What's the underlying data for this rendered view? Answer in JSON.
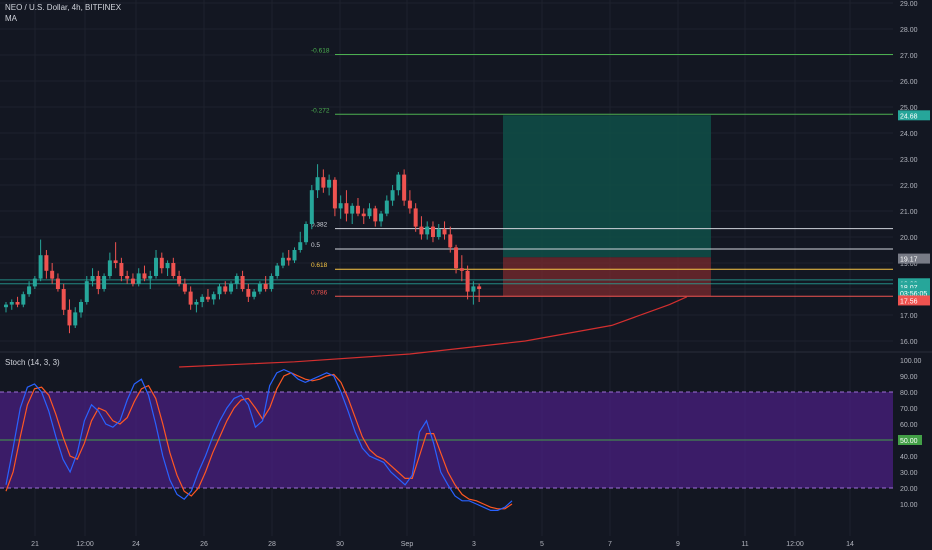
{
  "header": {
    "symbol": "NEO / U.S. Dollar, 4h, BITFINEX",
    "indicator": "MA",
    "stoch_label": "Stoch (14, 3, 3)"
  },
  "colors": {
    "background": "#131722",
    "up": "#26a69a",
    "down": "#ef5350",
    "ma": "#d32f2f",
    "stoch_k": "#2962ff",
    "stoch_d": "#ff5722",
    "stoch_band": "#4a1f80",
    "target_zone": "#0f4f48",
    "stop_zone": "#7a2a2e",
    "fib_green": "#4caf50",
    "fib_white": "#d1d4dc",
    "fib_yellow": "#f9c644",
    "fib_red": "#ef5350"
  },
  "chart_data": {
    "type": "candlestick",
    "price_axis": {
      "min": 16.0,
      "max": 29.0,
      "step": 1,
      "ticks": [
        "29.00",
        "28.00",
        "27.00",
        "26.00",
        "25.00",
        "24.00",
        "23.00",
        "22.00",
        "21.00",
        "20.00",
        "19.00",
        "18.00",
        "17.00",
        "16.00"
      ]
    },
    "time_axis": {
      "labels": [
        "21",
        "12:00",
        "24",
        "26",
        "28",
        "30",
        "Sep",
        "3",
        "5",
        "7",
        "9",
        "11",
        "12:00",
        "14"
      ]
    },
    "price_tags": [
      {
        "value": 24.68,
        "label": "24.68",
        "color": "#26a69a"
      },
      {
        "value": 19.17,
        "label": "19.17",
        "color": "#787b86"
      },
      {
        "value": 18.22,
        "label": "18.22",
        "color": "#26a69a"
      },
      {
        "value": 18.07,
        "label": "18.07",
        "color": "#26a69a"
      },
      {
        "value": 17.84,
        "label": "03:56:05",
        "color": "#26a69a"
      },
      {
        "value": 17.56,
        "label": "17.56",
        "color": "#ef5350"
      }
    ],
    "fib_levels": [
      {
        "label": "-0.618",
        "value": 27.02,
        "color": "#4caf50"
      },
      {
        "label": "-0.272",
        "value": 24.72,
        "color": "#4caf50"
      },
      {
        "label": "0.382",
        "value": 20.32,
        "color": "#d1d4dc"
      },
      {
        "label": "0.5",
        "value": 19.54,
        "color": "#d1d4dc"
      },
      {
        "label": "0.618",
        "value": 18.76,
        "color": "#f9c644"
      },
      {
        "label": "0.786",
        "value": 17.72,
        "color": "#ef5350"
      }
    ],
    "support_lines": [
      18.35,
      18.2
    ],
    "target_zone": {
      "from": 19.22,
      "to": 24.68
    },
    "stop_zone": {
      "from": 17.72,
      "to": 19.22
    },
    "ohlc": [
      [
        17.3,
        17.5,
        17.1,
        17.4
      ],
      [
        17.4,
        17.6,
        17.2,
        17.5
      ],
      [
        17.5,
        17.7,
        17.3,
        17.4
      ],
      [
        17.4,
        17.9,
        17.3,
        17.8
      ],
      [
        17.8,
        18.3,
        17.7,
        18.1
      ],
      [
        18.1,
        18.5,
        18.0,
        18.4
      ],
      [
        18.4,
        19.9,
        18.3,
        19.3
      ],
      [
        19.3,
        19.5,
        18.4,
        18.7
      ],
      [
        18.7,
        19.0,
        18.2,
        18.4
      ],
      [
        18.4,
        18.6,
        17.9,
        18.0
      ],
      [
        18.0,
        18.2,
        17.0,
        17.2
      ],
      [
        17.2,
        17.6,
        16.3,
        16.6
      ],
      [
        16.6,
        17.3,
        16.5,
        17.1
      ],
      [
        17.1,
        17.6,
        16.9,
        17.5
      ],
      [
        17.5,
        18.5,
        17.4,
        18.3
      ],
      [
        18.3,
        18.8,
        18.1,
        18.5
      ],
      [
        18.5,
        18.7,
        17.8,
        18.0
      ],
      [
        18.0,
        18.6,
        17.9,
        18.5
      ],
      [
        18.5,
        19.4,
        18.4,
        19.1
      ],
      [
        19.1,
        19.8,
        18.8,
        19.0
      ],
      [
        19.0,
        19.2,
        18.3,
        18.5
      ],
      [
        18.5,
        18.7,
        18.2,
        18.4
      ],
      [
        18.4,
        18.6,
        18.1,
        18.2
      ],
      [
        18.2,
        18.8,
        18.1,
        18.6
      ],
      [
        18.6,
        18.9,
        18.3,
        18.4
      ],
      [
        18.4,
        18.7,
        18.0,
        18.5
      ],
      [
        18.5,
        19.5,
        18.4,
        19.2
      ],
      [
        19.2,
        19.4,
        18.6,
        18.8
      ],
      [
        18.8,
        19.1,
        18.5,
        19.0
      ],
      [
        19.0,
        19.2,
        18.4,
        18.5
      ],
      [
        18.5,
        18.7,
        18.1,
        18.2
      ],
      [
        18.2,
        18.4,
        17.8,
        17.9
      ],
      [
        17.9,
        18.1,
        17.2,
        17.4
      ],
      [
        17.4,
        17.6,
        17.1,
        17.5
      ],
      [
        17.5,
        17.8,
        17.3,
        17.7
      ],
      [
        17.7,
        18.0,
        17.5,
        17.6
      ],
      [
        17.6,
        17.9,
        17.4,
        17.8
      ],
      [
        17.8,
        18.2,
        17.6,
        18.1
      ],
      [
        18.1,
        18.3,
        17.8,
        17.9
      ],
      [
        17.9,
        18.3,
        17.8,
        18.2
      ],
      [
        18.2,
        18.6,
        18.0,
        18.5
      ],
      [
        18.5,
        18.7,
        17.9,
        18.0
      ],
      [
        18.0,
        18.2,
        17.5,
        17.7
      ],
      [
        17.7,
        18.0,
        17.6,
        17.9
      ],
      [
        17.9,
        18.3,
        17.8,
        18.2
      ],
      [
        18.2,
        18.5,
        17.9,
        18.0
      ],
      [
        18.0,
        18.6,
        17.9,
        18.5
      ],
      [
        18.5,
        19.0,
        18.4,
        18.9
      ],
      [
        18.9,
        19.4,
        18.8,
        19.2
      ],
      [
        19.2,
        19.5,
        18.9,
        19.1
      ],
      [
        19.1,
        19.6,
        19.0,
        19.5
      ],
      [
        19.5,
        20.2,
        19.4,
        19.8
      ],
      [
        19.8,
        20.6,
        19.7,
        20.5
      ],
      [
        20.5,
        22.0,
        20.3,
        21.8
      ],
      [
        21.8,
        22.8,
        21.5,
        22.3
      ],
      [
        22.3,
        22.6,
        21.7,
        21.9
      ],
      [
        21.9,
        22.4,
        21.6,
        22.2
      ],
      [
        22.2,
        22.3,
        20.8,
        21.1
      ],
      [
        21.1,
        21.6,
        20.7,
        21.3
      ],
      [
        21.3,
        21.8,
        20.6,
        20.9
      ],
      [
        20.9,
        21.3,
        20.5,
        21.2
      ],
      [
        21.2,
        21.5,
        20.8,
        20.9
      ],
      [
        20.9,
        21.1,
        20.5,
        20.8
      ],
      [
        20.8,
        21.3,
        20.7,
        21.1
      ],
      [
        21.1,
        21.2,
        20.4,
        20.6
      ],
      [
        20.6,
        21.0,
        20.4,
        20.9
      ],
      [
        20.9,
        21.6,
        20.8,
        21.4
      ],
      [
        21.4,
        22.0,
        21.2,
        21.8
      ],
      [
        21.8,
        22.5,
        21.6,
        22.4
      ],
      [
        22.4,
        22.6,
        21.2,
        21.4
      ],
      [
        21.4,
        21.8,
        20.9,
        21.1
      ],
      [
        21.1,
        21.3,
        20.2,
        20.4
      ],
      [
        20.4,
        20.8,
        19.9,
        20.1
      ],
      [
        20.1,
        20.6,
        19.9,
        20.4
      ],
      [
        20.4,
        20.6,
        19.8,
        20.0
      ],
      [
        20.0,
        20.5,
        19.9,
        20.3
      ],
      [
        20.3,
        20.6,
        19.9,
        20.1
      ],
      [
        20.1,
        20.4,
        19.4,
        19.6
      ],
      [
        19.6,
        19.7,
        18.6,
        18.8
      ],
      [
        18.8,
        19.3,
        18.3,
        18.7
      ],
      [
        18.7,
        18.9,
        17.6,
        17.9
      ],
      [
        17.9,
        18.3,
        17.4,
        18.1
      ],
      [
        18.1,
        18.2,
        17.5,
        18.0
      ]
    ],
    "ma": [
      [
        0,
        15.0
      ],
      [
        20,
        15.2
      ],
      [
        40,
        15.5
      ],
      [
        60,
        16.0
      ],
      [
        75,
        16.6
      ],
      [
        85,
        17.4
      ],
      [
        88,
        17.7
      ]
    ],
    "stochastic": {
      "axis_ticks": [
        "100.00",
        "90.00",
        "80.00",
        "70.00",
        "60.00",
        "50.00",
        "40.00",
        "30.00",
        "20.00",
        "10.00"
      ],
      "upper_band": 80,
      "lower_band": 20,
      "mid_line": 50,
      "k": [
        22,
        45,
        70,
        83,
        85,
        80,
        68,
        52,
        38,
        30,
        42,
        62,
        72,
        68,
        60,
        58,
        62,
        75,
        85,
        88,
        78,
        60,
        40,
        25,
        16,
        13,
        18,
        30,
        40,
        52,
        62,
        70,
        76,
        78,
        72,
        58,
        62,
        84,
        92,
        94,
        92,
        88,
        86,
        88,
        90,
        92,
        90,
        80,
        68,
        55,
        45,
        40,
        38,
        36,
        30,
        26,
        22,
        28,
        55,
        62,
        48,
        30,
        22,
        15,
        12,
        12,
        10,
        8,
        6,
        6,
        8,
        12
      ],
      "d": [
        18,
        30,
        52,
        72,
        82,
        83,
        78,
        66,
        52,
        40,
        38,
        48,
        62,
        70,
        68,
        62,
        60,
        64,
        74,
        82,
        84,
        76,
        60,
        42,
        28,
        18,
        15,
        20,
        30,
        42,
        52,
        62,
        70,
        75,
        76,
        70,
        63,
        70,
        82,
        90,
        92,
        90,
        88,
        87,
        88,
        90,
        91,
        86,
        76,
        64,
        52,
        44,
        40,
        38,
        34,
        30,
        26,
        26,
        40,
        54,
        54,
        42,
        30,
        22,
        16,
        13,
        12,
        10,
        8,
        7,
        7,
        10
      ]
    }
  }
}
